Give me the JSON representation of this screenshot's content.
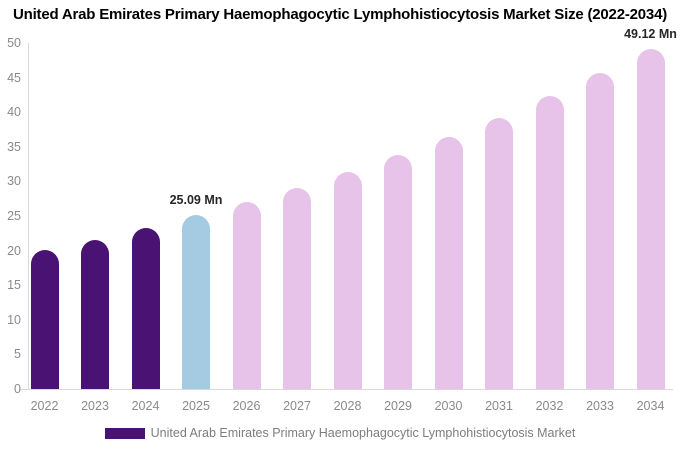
{
  "title": "United Arab Emirates Primary Haemophagocytic Lymphohistiocytosis Market Size (2022-2034)",
  "chart_data": {
    "type": "bar",
    "title": "United Arab Emirates Primary Haemophagocytic Lymphohistiocytosis Market Size (2022-2034)",
    "unit": "Mn",
    "categories": [
      "2022",
      "2023",
      "2024",
      "2025",
      "2026",
      "2027",
      "2028",
      "2029",
      "2030",
      "2031",
      "2032",
      "2033",
      "2034"
    ],
    "values": [
      20.1,
      21.6,
      23.3,
      25.09,
      27.0,
      29.1,
      31.4,
      33.8,
      36.4,
      39.2,
      42.3,
      45.6,
      49.12
    ],
    "segments": [
      "historical",
      "historical",
      "historical",
      "base",
      "forecast",
      "forecast",
      "forecast",
      "forecast",
      "forecast",
      "forecast",
      "forecast",
      "forecast",
      "forecast"
    ],
    "ylim": [
      0,
      50
    ],
    "ytick_step": 5,
    "ytick_labels": [
      "0",
      "5",
      "10",
      "15",
      "20",
      "25",
      "30",
      "35",
      "40",
      "45",
      "50"
    ],
    "grid": false,
    "legend_position": "bottom",
    "legend_label": "United Arab Emirates Primary Haemophagocytic Lymphohistiocytosis Market",
    "annotations": [
      {
        "category": "2025",
        "text": "25.09 Mn"
      },
      {
        "category": "2034",
        "text": "49.12 Mn"
      }
    ],
    "colors": {
      "historical": "#4A1272",
      "base": "#A4CBE1",
      "forecast": "#E7C3EA",
      "axis": "#D9D9D9",
      "tick_label": "#8A8A8A",
      "legend_text": "#7D7D7D",
      "annotation": "#262626",
      "title": "#000000",
      "background": "#FFFFFF"
    }
  }
}
